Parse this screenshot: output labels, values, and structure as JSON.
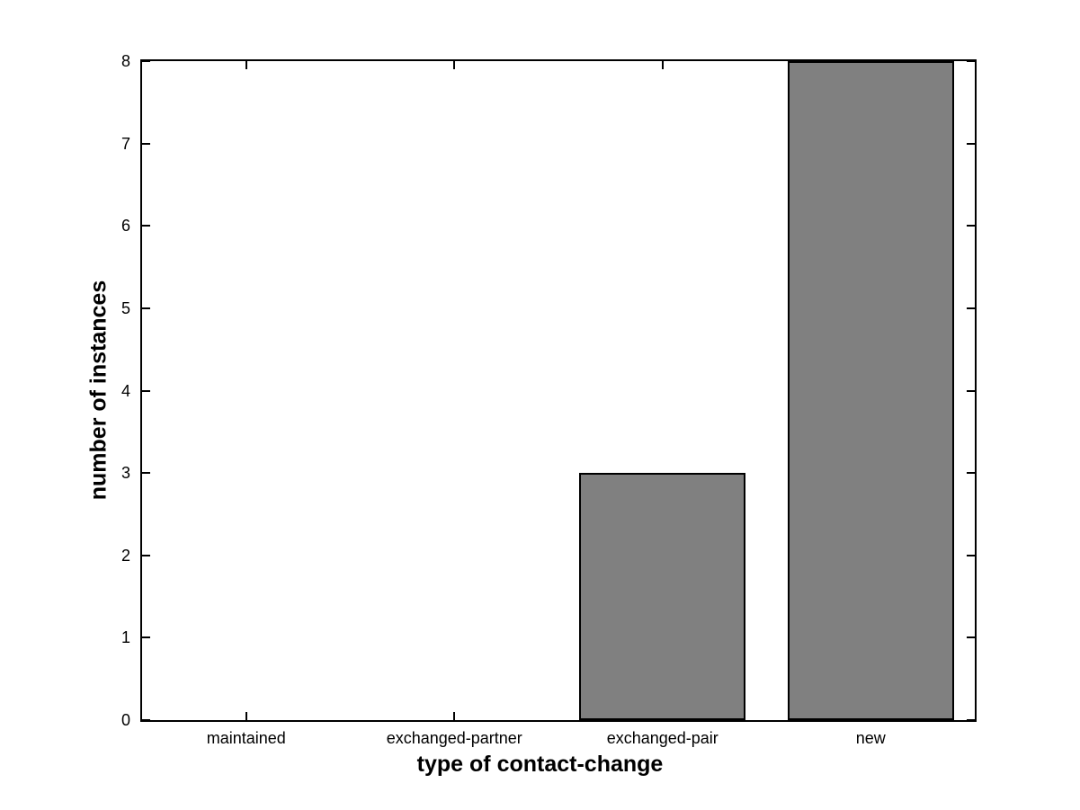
{
  "chart_data": {
    "type": "bar",
    "categories": [
      "maintained",
      "exchanged-partner",
      "exchanged-pair",
      "new"
    ],
    "values": [
      0,
      0,
      3,
      8
    ],
    "xlabel": "type of contact-change",
    "ylabel": "number of instances",
    "ylim": [
      0,
      8
    ],
    "yticks": [
      0,
      1,
      2,
      3,
      4,
      5,
      6,
      7,
      8
    ],
    "bar_width_fraction": 0.8,
    "bar_color": "#808080",
    "bar_edge_color": "#000000",
    "axis_color": "#000000",
    "background_color": "#ffffff",
    "grid": false,
    "legend_position": "none"
  }
}
